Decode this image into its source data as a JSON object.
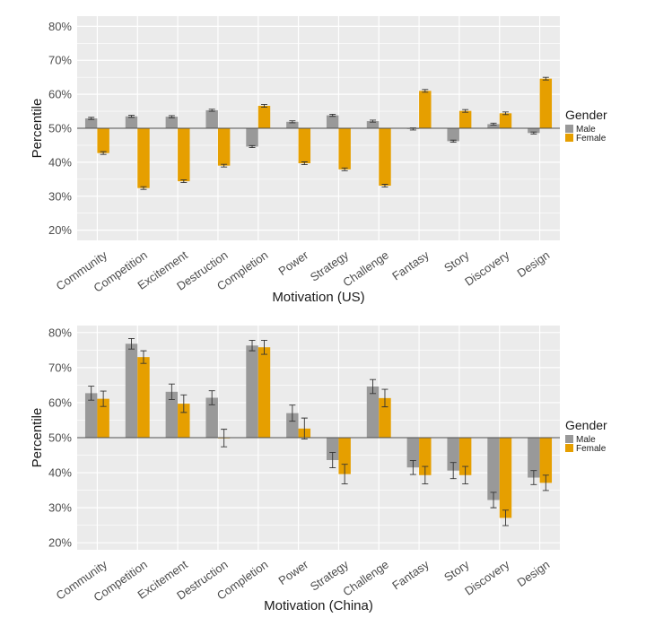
{
  "colors": {
    "male": "#999999",
    "female": "#E69F00",
    "panel": "#EBEBEB",
    "grid": "#FFFFFF"
  },
  "chart_data": [
    {
      "type": "bar",
      "xlabel": "Motivation (US)",
      "ylabel": "Percentile",
      "baseline": 50,
      "ylim": [
        17,
        83
      ],
      "yticks": [
        "20%",
        "30%",
        "40%",
        "50%",
        "60%",
        "70%",
        "80%"
      ],
      "ytick_values": [
        20,
        30,
        40,
        50,
        60,
        70,
        80
      ],
      "grid": true,
      "legend": {
        "title": "Gender",
        "placement": "right",
        "entries": [
          "Male",
          "Female"
        ]
      },
      "categories": [
        "Community",
        "Competition",
        "Excitement",
        "Destruction",
        "Completion",
        "Power",
        "Strategy",
        "Challenge",
        "Fantasy",
        "Story",
        "Discovery",
        "Design"
      ],
      "series": [
        {
          "name": "Male",
          "values": [
            52.9,
            53.5,
            53.4,
            55.3,
            44.6,
            51.9,
            53.8,
            52.1,
            49.8,
            46.2,
            51.2,
            48.6
          ],
          "error": [
            0.3,
            0.3,
            0.3,
            0.3,
            0.3,
            0.3,
            0.3,
            0.3,
            0.3,
            0.3,
            0.3,
            0.3
          ]
        },
        {
          "name": "Female",
          "values": [
            42.7,
            32.4,
            34.4,
            39.0,
            56.6,
            39.7,
            37.9,
            33.1,
            61.0,
            55.1,
            54.4,
            64.6
          ],
          "error": [
            0.4,
            0.4,
            0.4,
            0.4,
            0.4,
            0.4,
            0.4,
            0.4,
            0.4,
            0.4,
            0.4,
            0.4
          ]
        }
      ]
    },
    {
      "type": "bar",
      "xlabel": "Motivation (China)",
      "ylabel": "Percentile",
      "baseline": 50,
      "ylim": [
        18,
        82
      ],
      "yticks": [
        "20%",
        "30%",
        "40%",
        "50%",
        "60%",
        "70%",
        "80%"
      ],
      "ytick_values": [
        20,
        30,
        40,
        50,
        60,
        70,
        80
      ],
      "grid": true,
      "legend": {
        "title": "Gender",
        "placement": "right",
        "entries": [
          "Male",
          "Female"
        ]
      },
      "categories": [
        "Community",
        "Competition",
        "Excitement",
        "Destruction",
        "Completion",
        "Power",
        "Strategy",
        "Challenge",
        "Fantasy",
        "Story",
        "Discovery",
        "Design"
      ],
      "series": [
        {
          "name": "Male",
          "values": [
            62.7,
            76.8,
            63.1,
            61.4,
            76.3,
            57.0,
            43.6,
            64.6,
            41.5,
            40.6,
            32.2,
            38.6
          ],
          "error": [
            2.0,
            1.5,
            2.2,
            2.0,
            1.5,
            2.3,
            2.2,
            2.0,
            2.0,
            2.3,
            2.2,
            2.0
          ]
        },
        {
          "name": "Female",
          "values": [
            61.1,
            73.0,
            59.7,
            49.9,
            75.8,
            52.6,
            39.6,
            61.3,
            39.3,
            39.3,
            27.1,
            37.1
          ],
          "error": [
            2.2,
            1.8,
            2.5,
            2.5,
            2.0,
            3.0,
            2.8,
            2.5,
            2.5,
            2.5,
            2.2,
            2.2
          ]
        }
      ]
    }
  ]
}
